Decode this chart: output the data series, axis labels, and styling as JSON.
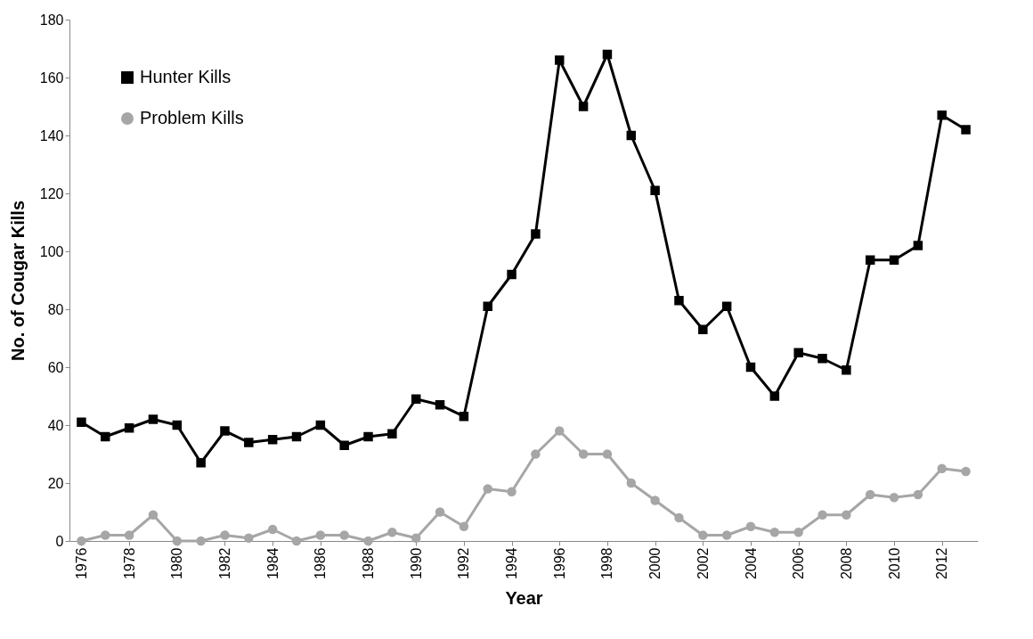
{
  "chart_data": {
    "type": "line",
    "xlabel": "Year",
    "ylabel": "No. of Cougar Kills",
    "x": [
      1976,
      1977,
      1978,
      1979,
      1980,
      1981,
      1982,
      1983,
      1984,
      1985,
      1986,
      1987,
      1988,
      1989,
      1990,
      1991,
      1992,
      1993,
      1994,
      1995,
      1996,
      1997,
      1998,
      1999,
      2000,
      2001,
      2002,
      2003,
      2004,
      2005,
      2006,
      2007,
      2008,
      2009,
      2010,
      2011,
      2012,
      2013
    ],
    "series": [
      {
        "name": "Hunter Kills",
        "color": "#000000",
        "marker": "square",
        "values": [
          41,
          36,
          39,
          42,
          40,
          27,
          38,
          34,
          35,
          36,
          40,
          33,
          36,
          37,
          49,
          47,
          43,
          81,
          92,
          106,
          166,
          150,
          168,
          140,
          121,
          83,
          73,
          81,
          60,
          50,
          65,
          63,
          59,
          97,
          97,
          102,
          147,
          142
        ]
      },
      {
        "name": "Problem Kills",
        "color": "#a6a6a6",
        "marker": "circle",
        "values": [
          0,
          2,
          2,
          9,
          0,
          0,
          2,
          1,
          4,
          0,
          2,
          2,
          0,
          3,
          1,
          10,
          5,
          18,
          17,
          30,
          38,
          30,
          30,
          20,
          14,
          8,
          2,
          2,
          5,
          3,
          3,
          9,
          9,
          16,
          15,
          16,
          25,
          24
        ]
      }
    ],
    "xlim": [
      1975.5,
      2013.5
    ],
    "xticks": [
      1976,
      1978,
      1980,
      1982,
      1984,
      1986,
      1988,
      1990,
      1992,
      1994,
      1996,
      1998,
      2000,
      2002,
      2004,
      2006,
      2008,
      2010,
      2012
    ],
    "ylim": [
      0,
      180
    ],
    "yticks": [
      0,
      20,
      40,
      60,
      80,
      100,
      120,
      140,
      160,
      180
    ],
    "grid": false,
    "legend": "top left",
    "line_style": "solid"
  }
}
